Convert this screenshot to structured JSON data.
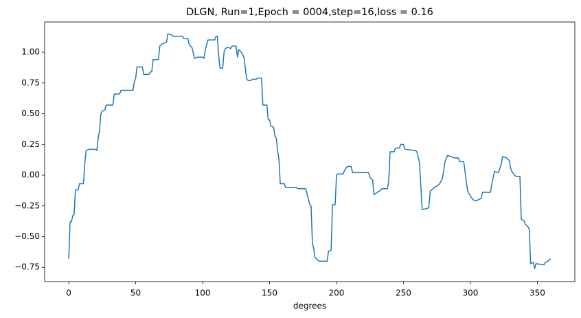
{
  "chart_data": {
    "type": "line",
    "title": "DLGN, Run=1,Epoch = 0004,step=16,loss = 0.16",
    "x_label": "degrees",
    "color": "#1f77b4",
    "x": [
      0,
      1,
      2,
      3,
      4,
      5,
      7,
      8,
      11,
      12,
      13,
      15,
      20,
      21,
      22,
      23,
      24,
      25,
      27,
      28,
      33,
      34,
      38,
      39,
      48,
      49,
      50,
      51,
      55,
      56,
      60,
      61,
      62,
      63,
      67,
      68,
      70,
      73,
      74,
      77,
      78,
      85,
      86,
      89,
      90,
      92,
      94,
      96,
      100,
      101,
      102,
      104,
      109,
      110,
      111,
      112,
      113,
      115,
      116,
      117,
      119,
      121,
      122,
      125,
      126,
      127,
      129,
      130,
      131,
      132,
      133,
      134,
      136,
      137,
      140,
      141,
      144,
      145,
      148,
      149,
      150,
      151,
      153,
      154,
      155,
      156,
      157,
      158,
      161,
      162,
      170,
      171,
      177,
      178,
      180,
      181,
      182,
      183,
      184,
      185,
      187,
      193,
      194,
      196,
      197,
      199,
      200,
      201,
      205,
      206,
      208,
      211,
      212,
      220,
      224,
      225,
      227,
      228,
      229,
      232,
      234,
      238,
      239,
      240,
      243,
      244,
      247,
      248,
      250,
      251,
      259,
      260,
      262,
      264,
      268,
      269,
      270,
      273,
      275,
      277,
      279,
      280,
      281,
      283,
      286,
      288,
      291,
      292,
      295,
      296,
      297,
      298,
      300,
      302,
      304,
      308,
      309,
      315,
      316,
      318,
      321,
      323,
      324,
      327,
      329,
      330,
      331,
      333,
      334,
      337,
      338,
      340,
      341,
      343,
      344,
      345,
      347,
      348,
      349,
      355,
      356,
      358,
      360
    ],
    "values": [
      -0.68,
      -0.38,
      -0.38,
      -0.33,
      -0.32,
      -0.12,
      -0.12,
      -0.07,
      -0.07,
      0.1,
      0.2,
      0.21,
      0.21,
      0.2,
      0.3,
      0.36,
      0.5,
      0.52,
      0.53,
      0.57,
      0.57,
      0.66,
      0.66,
      0.69,
      0.69,
      0.76,
      0.79,
      0.88,
      0.88,
      0.82,
      0.82,
      0.84,
      0.84,
      0.94,
      0.94,
      1.05,
      1.07,
      1.08,
      1.15,
      1.14,
      1.13,
      1.13,
      1.11,
      1.11,
      1.06,
      1.04,
      0.95,
      0.96,
      0.96,
      0.95,
      1.02,
      1.1,
      1.1,
      1.13,
      1.13,
      0.97,
      0.87,
      0.87,
      1.0,
      1.03,
      1.04,
      1.03,
      1.05,
      1.05,
      0.96,
      1.02,
      1.0,
      0.98,
      0.95,
      0.86,
      0.78,
      0.77,
      0.77,
      0.78,
      0.78,
      0.79,
      0.79,
      0.57,
      0.57,
      0.45,
      0.45,
      0.4,
      0.39,
      0.32,
      0.3,
      0.2,
      0.13,
      -0.07,
      -0.07,
      -0.1,
      -0.1,
      -0.11,
      -0.11,
      -0.15,
      -0.24,
      -0.25,
      -0.55,
      -0.6,
      -0.67,
      -0.68,
      -0.7,
      -0.7,
      -0.62,
      -0.61,
      -0.24,
      -0.24,
      0.0,
      0.01,
      0.01,
      0.04,
      0.07,
      0.07,
      0.02,
      0.02,
      0.02,
      -0.02,
      -0.04,
      -0.16,
      -0.15,
      -0.13,
      -0.11,
      -0.11,
      -0.05,
      0.19,
      0.19,
      0.22,
      0.22,
      0.25,
      0.25,
      0.21,
      0.2,
      0.19,
      0.1,
      -0.28,
      -0.27,
      -0.26,
      -0.13,
      -0.1,
      -0.09,
      -0.07,
      -0.03,
      0.03,
      0.11,
      0.16,
      0.15,
      0.14,
      0.14,
      0.11,
      0.11,
      0.03,
      -0.06,
      -0.13,
      -0.17,
      -0.2,
      -0.21,
      -0.19,
      -0.14,
      -0.14,
      -0.07,
      0.03,
      0.02,
      0.09,
      0.15,
      0.14,
      0.12,
      0.06,
      0.03,
      0.0,
      -0.01,
      -0.01,
      -0.36,
      -0.37,
      -0.4,
      -0.42,
      -0.44,
      -0.72,
      -0.71,
      -0.76,
      -0.72,
      -0.73,
      -0.71,
      -0.7,
      -0.68
    ],
    "xlim": [
      -18,
      378
    ],
    "xticks": [
      0,
      50,
      100,
      150,
      200,
      250,
      300,
      350
    ],
    "ylim": [
      -0.866,
      1.246
    ],
    "yticks": [
      {
        "value": -0.75,
        "label": "−0.75"
      },
      {
        "value": -0.5,
        "label": "−0.50"
      },
      {
        "value": -0.25,
        "label": "−0.25"
      },
      {
        "value": 0,
        "label": "0.00"
      },
      {
        "value": 0.25,
        "label": "0.25"
      },
      {
        "value": 0.5,
        "label": "0.50"
      },
      {
        "value": 0.75,
        "label": "0.75"
      },
      {
        "value": 1,
        "label": "1.00"
      }
    ],
    "grid": false
  }
}
